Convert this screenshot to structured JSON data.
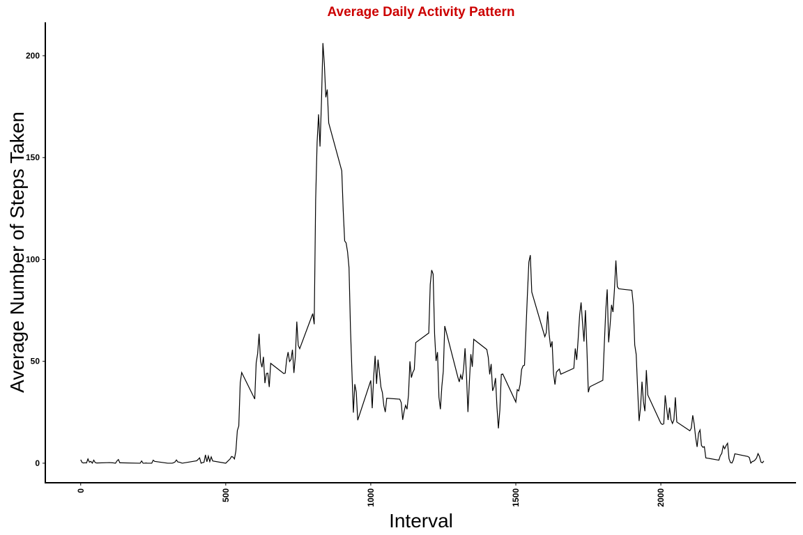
{
  "chart_data": {
    "type": "line",
    "title": "Average Daily Activity Pattern",
    "x_label": "Interval",
    "y_label": "Average Number of Steps Taken",
    "color": "#000000",
    "title_color": "#cc0000",
    "grid": false,
    "xlim": [
      -122,
      2466
    ],
    "ylim": [
      -9.6,
      216.4
    ],
    "xticks": [
      0,
      500,
      1000,
      1500,
      2000
    ],
    "yticks": [
      0,
      50,
      100,
      150,
      200
    ],
    "x": [
      0,
      5,
      10,
      15,
      20,
      25,
      30,
      35,
      40,
      45,
      50,
      55,
      100,
      110,
      120,
      125,
      130,
      135,
      140,
      200,
      205,
      210,
      215,
      220,
      225,
      230,
      240,
      245,
      250,
      255,
      300,
      315,
      320,
      325,
      330,
      335,
      340,
      350,
      400,
      410,
      415,
      420,
      425,
      430,
      435,
      440,
      445,
      450,
      455,
      500,
      515,
      520,
      525,
      530,
      535,
      540,
      545,
      550,
      555,
      600,
      605,
      610,
      615,
      620,
      625,
      630,
      635,
      640,
      645,
      650,
      655,
      700,
      705,
      710,
      715,
      720,
      725,
      730,
      735,
      740,
      745,
      750,
      755,
      800,
      805,
      810,
      815,
      820,
      825,
      830,
      835,
      840,
      845,
      850,
      855,
      900,
      905,
      910,
      915,
      920,
      925,
      930,
      935,
      940,
      945,
      950,
      955,
      1000,
      1005,
      1010,
      1015,
      1020,
      1025,
      1030,
      1035,
      1040,
      1045,
      1050,
      1055,
      1100,
      1105,
      1110,
      1115,
      1120,
      1125,
      1130,
      1135,
      1140,
      1145,
      1150,
      1155,
      1200,
      1205,
      1210,
      1215,
      1220,
      1225,
      1230,
      1235,
      1240,
      1245,
      1250,
      1255,
      1300,
      1305,
      1310,
      1315,
      1320,
      1325,
      1330,
      1335,
      1340,
      1345,
      1350,
      1355,
      1400,
      1405,
      1410,
      1415,
      1420,
      1425,
      1430,
      1435,
      1440,
      1445,
      1450,
      1455,
      1500,
      1505,
      1510,
      1515,
      1520,
      1525,
      1530,
      1535,
      1540,
      1545,
      1550,
      1555,
      1600,
      1605,
      1610,
      1615,
      1620,
      1625,
      1630,
      1635,
      1640,
      1645,
      1650,
      1655,
      1700,
      1705,
      1710,
      1715,
      1720,
      1725,
      1730,
      1735,
      1740,
      1745,
      1750,
      1755,
      1800,
      1805,
      1810,
      1815,
      1820,
      1825,
      1830,
      1835,
      1840,
      1845,
      1850,
      1855,
      1900,
      1905,
      1910,
      1915,
      1920,
      1925,
      1930,
      1935,
      1940,
      1945,
      1950,
      1955,
      2000,
      2005,
      2010,
      2015,
      2020,
      2025,
      2030,
      2035,
      2040,
      2045,
      2050,
      2055,
      2100,
      2105,
      2110,
      2115,
      2120,
      2125,
      2130,
      2135,
      2140,
      2145,
      2150,
      2155,
      2200,
      2205,
      2210,
      2215,
      2220,
      2225,
      2230,
      2235,
      2240,
      2245,
      2250,
      2255,
      2300,
      2305,
      2310,
      2315,
      2320,
      2325,
      2330,
      2335,
      2340,
      2345,
      2350,
      2355
    ],
    "values": [
      1.7,
      0.3,
      0.1,
      0.2,
      0.1,
      2.1,
      0.5,
      0.9,
      0,
      1.5,
      0.3,
      0.1,
      0.3,
      0.2,
      0,
      1.1,
      1.8,
      0.2,
      0.2,
      0,
      0,
      1.1,
      0,
      0,
      0.1,
      0,
      0,
      0,
      1.5,
      0.9,
      0,
      0,
      0.2,
      0.6,
      1.6,
      0.6,
      0.5,
      0,
      1.2,
      2.6,
      0,
      0.3,
      0.4,
      4.1,
      0.7,
      3.5,
      0.8,
      3.1,
      1.1,
      0,
      2.1,
      3.3,
      3,
      2.1,
      6,
      16,
      18.3,
      39.5,
      44.5,
      31.5,
      49.3,
      53.8,
      63.5,
      50,
      47.1,
      52.2,
      39.3,
      44,
      44.2,
      37.4,
      49,
      44,
      44.2,
      50.8,
      54.5,
      49.9,
      50.9,
      55.7,
      44.3,
      52.3,
      69.5,
      57.8,
      56.2,
      73.4,
      68.2,
      129.4,
      157.5,
      171.2,
      155.4,
      177.3,
      206.2,
      195.9,
      179.6,
      183.4,
      167,
      143.5,
      124,
      109.1,
      108.1,
      103.7,
      96,
      66.2,
      45.2,
      24.8,
      38.8,
      34.9,
      21.1,
      40.6,
      27,
      42.4,
      52.7,
      38.9,
      50.8,
      44.3,
      37.4,
      34.7,
      28.3,
      25.1,
      31.9,
      31.4,
      29.7,
      21.3,
      25.5,
      28.4,
      26.5,
      33.4,
      50,
      42,
      44.6,
      46,
      59.2,
      63.9,
      87.7,
      94.8,
      92.8,
      63.4,
      50.2,
      54.5,
      32.4,
      26.5,
      37.7,
      45.1,
      67.3,
      42.3,
      39.9,
      43.3,
      41,
      46.2,
      56.4,
      42.8,
      25.1,
      40,
      53.5,
      47.3,
      60.8,
      55.8,
      52,
      43.6,
      48.7,
      35.5,
      37.5,
      41.8,
      27.5,
      17.1,
      26.1,
      43.6,
      43.8,
      30,
      36.1,
      35.5,
      38.8,
      46,
      47.8,
      48.1,
      65.3,
      82.9,
      98.7,
      102.1,
      84,
      62.1,
      64.1,
      74.5,
      63.2,
      56.9,
      59.8,
      43.9,
      38.6,
      44.7,
      45.5,
      46.2,
      43.7,
      46.6,
      56.3,
      50.7,
      61.2,
      72.7,
      78.9,
      68.9,
      59.7,
      75.1,
      56.5,
      34.8,
      37.5,
      40.7,
      58,
      74.7,
      85.3,
      59.3,
      67.8,
      77.7,
      74.2,
      85.3,
      99.5,
      86.6,
      85.6,
      84.9,
      77.8,
      58,
      53.4,
      36.3,
      20.7,
      27.4,
      40,
      30.2,
      25.5,
      45.7,
      33.5,
      19.6,
      19,
      19.3,
      33.3,
      26.8,
      21.2,
      27.3,
      21.3,
      19.5,
      21.3,
      32.3,
      20.2,
      15.9,
      17.2,
      23.5,
      19.2,
      12.5,
      8,
      14.7,
      16.3,
      8.7,
      7.8,
      8.1,
      2.6,
      1.5,
      3.7,
      4.8,
      8.5,
      7.1,
      8.7,
      9.8,
      2.2,
      0.3,
      0.1,
      1.6,
      4.6,
      3.3,
      2.8,
      0,
      0.8,
      1,
      1.6,
      2.6,
      4.7,
      3.3,
      0.6,
      0.2,
      1.1
    ]
  }
}
